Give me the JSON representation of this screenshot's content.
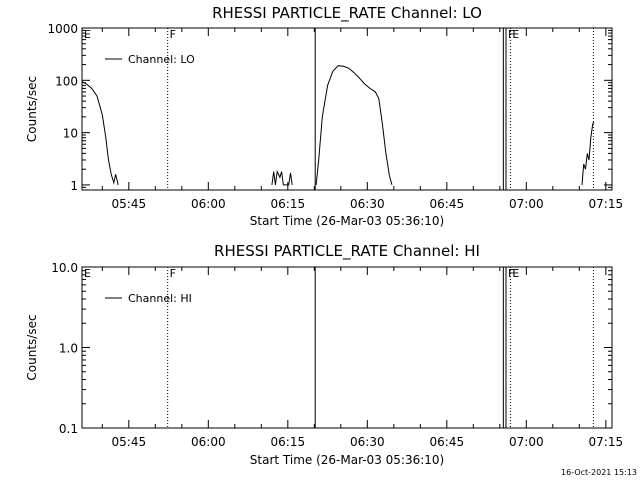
{
  "chart_data": [
    {
      "type": "line",
      "title": "RHESSI PARTICLE_RATE Channel: LO",
      "xlabel": "Start Time (26-Mar-03 05:36:10)",
      "ylabel": "Counts/sec",
      "yscale": "log",
      "ylim": [
        0.8,
        1000
      ],
      "xlim": [
        "05:36:10",
        "07:16:10"
      ],
      "x_ticks": [
        "05:45",
        "06:00",
        "06:15",
        "06:30",
        "06:45",
        "07:00",
        "07:15"
      ],
      "y_ticks": [
        "1",
        "10",
        "100",
        "1000"
      ],
      "legend": {
        "label": "Channel: LO",
        "placement": "top-left"
      },
      "series": [
        {
          "name": "Channel: LO",
          "segments": [
            [
              [
                "05:36:10",
                95
              ],
              [
                "05:37:00",
                85
              ],
              [
                "05:38:00",
                70
              ],
              [
                "05:39:00",
                50
              ],
              [
                "05:40:00",
                22
              ],
              [
                "05:40:40",
                8
              ],
              [
                "05:41:10",
                3
              ],
              [
                "05:41:40",
                1.6
              ],
              [
                "05:42:10",
                1.1
              ],
              [
                "05:42:30",
                1.6
              ],
              [
                "05:43:00",
                1
              ]
            ],
            [
              [
                "06:12:00",
                1
              ],
              [
                "06:12:20",
                1.8
              ],
              [
                "06:12:40",
                1
              ],
              [
                "06:13:00",
                1.8
              ],
              [
                "06:13:30",
                1.4
              ],
              [
                "06:13:50",
                1.8
              ],
              [
                "06:14:10",
                1
              ],
              [
                "06:15:10",
                1
              ],
              [
                "06:15:30",
                1.7
              ],
              [
                "06:15:50",
                1
              ]
            ],
            [
              [
                "06:20:20",
                1
              ],
              [
                "06:20:50",
                3
              ],
              [
                "06:21:30",
                20
              ],
              [
                "06:22:30",
                80
              ],
              [
                "06:23:30",
                150
              ],
              [
                "06:24:30",
                190
              ],
              [
                "06:25:30",
                185
              ],
              [
                "06:26:30",
                170
              ],
              [
                "06:27:30",
                140
              ],
              [
                "06:28:30",
                110
              ],
              [
                "06:29:30",
                85
              ],
              [
                "06:30:30",
                70
              ],
              [
                "06:31:30",
                60
              ],
              [
                "06:32:10",
                45
              ],
              [
                "06:32:50",
                15
              ],
              [
                "06:33:30",
                4
              ],
              [
                "06:34:10",
                1.5
              ],
              [
                "06:34:40",
                1
              ]
            ],
            [
              [
                "07:10:30",
                1
              ],
              [
                "07:10:50",
                2.5
              ],
              [
                "07:11:10",
                2
              ],
              [
                "07:11:30",
                4
              ],
              [
                "07:11:50",
                3
              ],
              [
                "07:12:10",
                8
              ],
              [
                "07:12:30",
                14
              ],
              [
                "07:12:40",
                16
              ]
            ]
          ]
        }
      ]
    },
    {
      "type": "line",
      "title": "RHESSI PARTICLE_RATE Channel: HI",
      "xlabel": "Start Time (26-Mar-03 05:36:10)",
      "ylabel": "Counts/sec",
      "yscale": "log",
      "ylim": [
        0.1,
        10.0
      ],
      "xlim": [
        "05:36:10",
        "07:16:10"
      ],
      "x_ticks": [
        "05:45",
        "06:00",
        "06:15",
        "06:30",
        "06:45",
        "07:00",
        "07:15"
      ],
      "y_ticks": [
        "0.1",
        "1.0",
        "10.0"
      ],
      "legend": {
        "label": "Channel: HI",
        "placement": "top-left"
      },
      "series": [
        {
          "name": "Channel: HI",
          "segments": []
        }
      ]
    }
  ],
  "markers": [
    {
      "time": "05:52:20",
      "style": "dotted",
      "flag": "F"
    },
    {
      "time": "06:20:10",
      "style": "solid",
      "flag": ""
    },
    {
      "time": "06:55:40",
      "style": "solid",
      "flag": ""
    },
    {
      "time": "06:56:10",
      "style": "solid",
      "flag": "F"
    },
    {
      "time": "06:57:00",
      "style": "dotted",
      "flag": "E"
    },
    {
      "time": "07:12:40",
      "style": "dotted",
      "flag": ""
    }
  ],
  "start_flag": "E",
  "timestamp": "16-Oct-2021 15:13"
}
